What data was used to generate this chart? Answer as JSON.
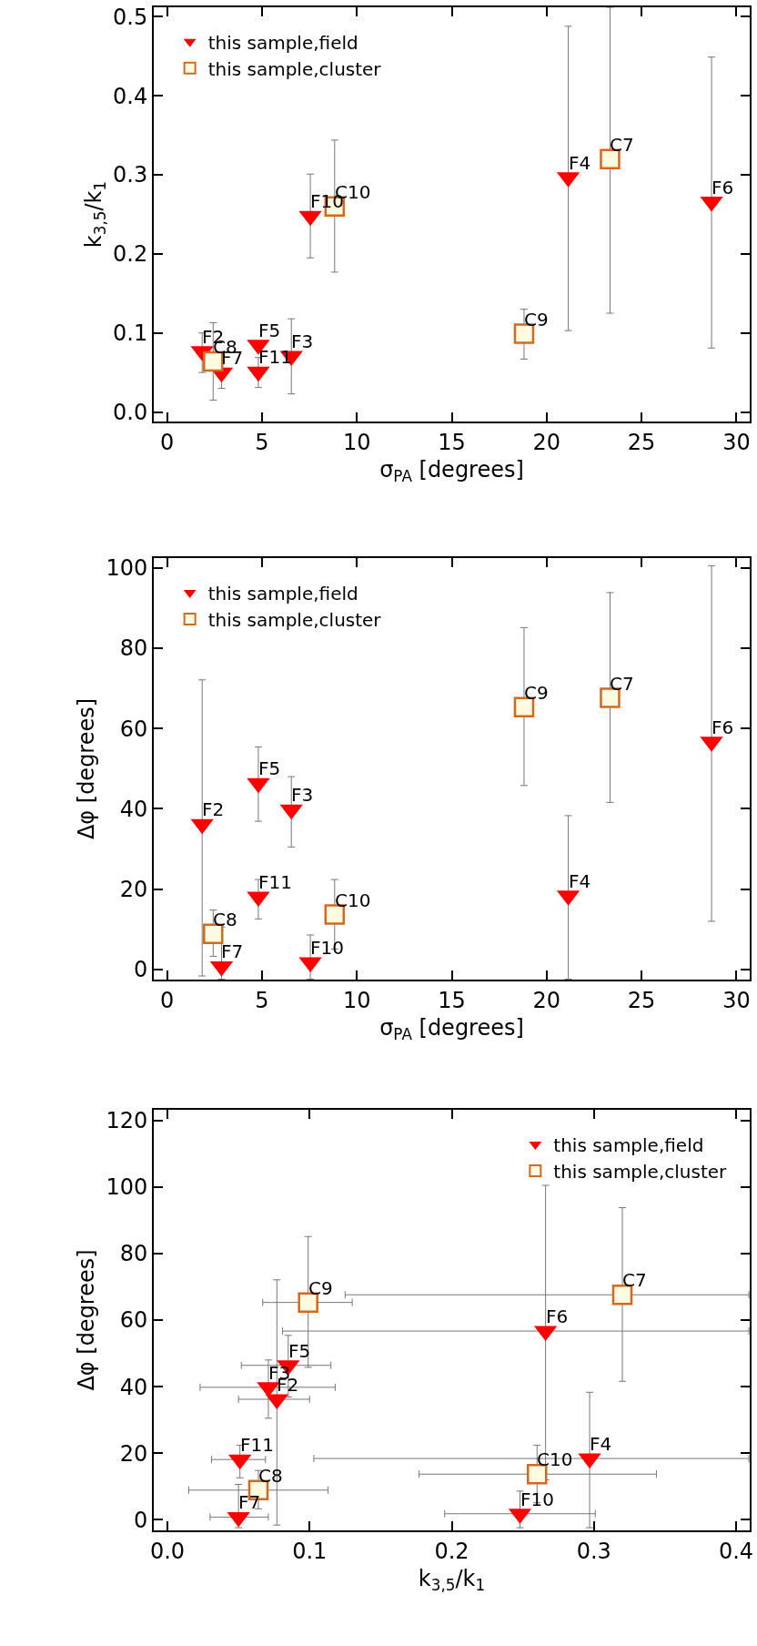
{
  "chart_data": [
    {
      "type": "scatter",
      "xlabel": "σ$_{PA}$ [degrees]",
      "ylabel": "k$_{3,5}$/k$_{1}$",
      "xlim": [
        -0.7,
        30.7
      ],
      "ylim": [
        -0.012,
        0.512
      ],
      "xticks": [
        0,
        5,
        10,
        15,
        20,
        25,
        30
      ],
      "yticks": [
        {
          "value": 0,
          "label": "0.0"
        },
        {
          "value": 0.1,
          "label": "0.1"
        },
        {
          "value": 0.2,
          "label": "0.2"
        },
        {
          "value": 0.3,
          "label": "0.3"
        },
        {
          "value": 0.4,
          "label": "0.4"
        },
        {
          "value": 0.5,
          "label": "0.5"
        }
      ],
      "grid": false,
      "legend": "top left",
      "series": [
        {
          "name": "this sample,field",
          "color": "#ff0000",
          "marker": "triangle",
          "x": [
            1.85,
            2.87,
            4.81,
            4.81,
            6.55,
            7.55,
            21.14,
            28.69
          ],
          "values": [
            0.077,
            0.05,
            0.085,
            0.051,
            0.071,
            0.248,
            0.297,
            0.266
          ],
          "errors": [
            [
              0.05,
              0.1
            ],
            [
              0.03,
              0.071
            ],
            null,
            [
              0.031,
              0.069
            ],
            [
              0.023,
              0.118
            ],
            [
              0.195,
              0.301
            ],
            [
              0.103,
              0.488
            ],
            [
              0.081,
              0.449
            ]
          ]
        },
        {
          "name": "this sample,cluster",
          "color": "#d2691e",
          "marker": "square",
          "x": [
            2.43,
            8.83,
            18.81,
            23.34
          ],
          "values": [
            0.064,
            0.26,
            0.099,
            0.32
          ],
          "errors": [
            [
              0.015,
              0.113
            ],
            [
              0.177,
              0.344
            ],
            [
              0.067,
              0.13
            ],
            [
              0.125,
              0.512
            ]
          ]
        }
      ],
      "annotations": [
        {
          "text": "F2",
          "x": 1.85,
          "y": 0.077
        },
        {
          "text": "F7",
          "x": 2.87,
          "y": 0.05
        },
        {
          "text": "F5",
          "x": 4.81,
          "y": 0.085
        },
        {
          "text": "F11",
          "x": 4.81,
          "y": 0.051
        },
        {
          "text": "F3",
          "x": 6.55,
          "y": 0.071
        },
        {
          "text": "F10",
          "x": 7.55,
          "y": 0.248
        },
        {
          "text": "F4",
          "x": 21.14,
          "y": 0.297
        },
        {
          "text": "F6",
          "x": 28.69,
          "y": 0.266
        },
        {
          "text": "C8",
          "x": 2.43,
          "y": 0.064
        },
        {
          "text": "C10",
          "x": 8.83,
          "y": 0.26
        },
        {
          "text": "C9",
          "x": 18.81,
          "y": 0.099
        },
        {
          "text": "C7",
          "x": 23.34,
          "y": 0.32
        }
      ]
    },
    {
      "type": "scatter",
      "xlabel": "σ$_{PA}$ [degrees]",
      "ylabel": "Δφ [degrees]",
      "xlim": [
        -0.7,
        30.7
      ],
      "ylim": [
        -2.5,
        102.4
      ],
      "xticks": [
        0,
        5,
        10,
        15,
        20,
        25,
        30
      ],
      "yticks": [
        0,
        20,
        40,
        60,
        80,
        100
      ],
      "grid": false,
      "legend": "top left",
      "series": [
        {
          "name": "this sample,field",
          "color": "#ff0000",
          "marker": "triangle",
          "x": [
            1.85,
            2.87,
            4.81,
            4.81,
            6.55,
            7.55,
            21.14,
            28.69
          ],
          "values": [
            36.2,
            0.8,
            46.4,
            18.1,
            39.8,
            1.8,
            18.4,
            56.7
          ],
          "errors": [
            [
              -1.6,
              72.1
            ],
            [
              -2.4,
              10.6
            ],
            [
              36.9,
              55.4
            ],
            [
              12.6,
              22.4
            ],
            [
              30.5,
              48
            ],
            [
              -2.4,
              8.6
            ],
            [
              -2.4,
              38.3
            ],
            [
              12,
              100.5
            ]
          ]
        },
        {
          "name": "this sample,cluster",
          "color": "#d2691e",
          "marker": "square",
          "x": [
            2.43,
            8.83,
            18.81,
            23.34
          ],
          "values": [
            8.9,
            13.7,
            65.3,
            67.6
          ],
          "errors": [
            [
              3.3,
              14.8
            ],
            [
              5.1,
              22.4
            ],
            [
              45.8,
              85.1
            ],
            [
              41.6,
              93.8
            ]
          ]
        }
      ],
      "annotations": [
        {
          "text": "F2",
          "x": 1.85,
          "y": 36.2
        },
        {
          "text": "F7",
          "x": 2.87,
          "y": 0.8
        },
        {
          "text": "F5",
          "x": 4.81,
          "y": 46.4
        },
        {
          "text": "F11",
          "x": 4.81,
          "y": 18.1
        },
        {
          "text": "F3",
          "x": 6.55,
          "y": 39.8
        },
        {
          "text": "F10",
          "x": 7.55,
          "y": 1.8
        },
        {
          "text": "F4",
          "x": 21.14,
          "y": 18.4
        },
        {
          "text": "F6",
          "x": 28.69,
          "y": 56.7
        },
        {
          "text": "C8",
          "x": 2.43,
          "y": 8.9
        },
        {
          "text": "C10",
          "x": 8.83,
          "y": 13.7
        },
        {
          "text": "C9",
          "x": 18.81,
          "y": 65.3
        },
        {
          "text": "C7",
          "x": 23.34,
          "y": 67.6
        }
      ]
    },
    {
      "type": "scatter",
      "xlabel": "k$_{3,5}$/k$_{1}$",
      "ylabel": "Δφ [degrees]",
      "xlim": [
        -0.0096,
        0.4096
      ],
      "ylim": [
        -3.2,
        123.2
      ],
      "xticks": [
        {
          "value": 0,
          "label": "0.0"
        },
        {
          "value": 0.1,
          "label": "0.1"
        },
        {
          "value": 0.2,
          "label": "0.2"
        },
        {
          "value": 0.3,
          "label": "0.3"
        },
        {
          "value": 0.4,
          "label": "0.4"
        }
      ],
      "yticks": [
        0,
        20,
        40,
        60,
        80,
        100,
        120
      ],
      "grid": false,
      "legend": "top right",
      "series": [
        {
          "name": "this sample,field",
          "color": "#ff0000",
          "marker": "triangle",
          "x": [
            0.077,
            0.05,
            0.085,
            0.051,
            0.071,
            0.248,
            0.297,
            0.266
          ],
          "values": [
            36.2,
            0.8,
            46.4,
            18.1,
            39.8,
            1.8,
            18.4,
            56.7
          ],
          "errors": [
            [
              -1.6,
              72.1
            ],
            [
              -2.4,
              10.6
            ],
            [
              36.9,
              55.4
            ],
            [
              12.6,
              22.4
            ],
            [
              30.5,
              48
            ],
            [
              -2.4,
              8.6
            ],
            [
              -2.4,
              38.3
            ],
            [
              12,
              100.5
            ]
          ],
          "xerrors": [
            [
              0.05,
              0.1
            ],
            [
              0.03,
              0.071
            ],
            [
              0.052,
              0.115
            ],
            [
              0.031,
              0.069
            ],
            [
              0.023,
              0.118
            ],
            [
              0.195,
              0.301
            ],
            [
              0.103,
              0.409
            ],
            [
              0.081,
              0.409
            ]
          ]
        },
        {
          "name": "this sample,cluster",
          "color": "#d2691e",
          "marker": "square",
          "x": [
            0.064,
            0.26,
            0.099,
            0.32
          ],
          "values": [
            8.9,
            13.7,
            65.3,
            67.6
          ],
          "errors": [
            [
              3.3,
              14.8
            ],
            [
              5.1,
              22.4
            ],
            [
              45.8,
              85.1
            ],
            [
              41.6,
              93.8
            ]
          ],
          "xerrors": [
            [
              0.015,
              0.113
            ],
            [
              0.177,
              0.344
            ],
            [
              0.067,
              0.13
            ],
            [
              0.125,
              0.409
            ]
          ]
        }
      ],
      "annotations": [
        {
          "text": "F2",
          "x": 0.077,
          "y": 36.2
        },
        {
          "text": "F7",
          "x": 0.05,
          "y": 0.8
        },
        {
          "text": "F5",
          "x": 0.085,
          "y": 46.4
        },
        {
          "text": "F11",
          "x": 0.051,
          "y": 18.1
        },
        {
          "text": "F3",
          "x": 0.071,
          "y": 39.8
        },
        {
          "text": "F10",
          "x": 0.248,
          "y": 1.8
        },
        {
          "text": "F4",
          "x": 0.297,
          "y": 18.4
        },
        {
          "text": "F6",
          "x": 0.266,
          "y": 56.7
        },
        {
          "text": "C8",
          "x": 0.064,
          "y": 8.9
        },
        {
          "text": "C10",
          "x": 0.26,
          "y": 13.7
        },
        {
          "text": "C9",
          "x": 0.099,
          "y": 65.3
        },
        {
          "text": "C7",
          "x": 0.32,
          "y": 67.6
        }
      ]
    }
  ]
}
